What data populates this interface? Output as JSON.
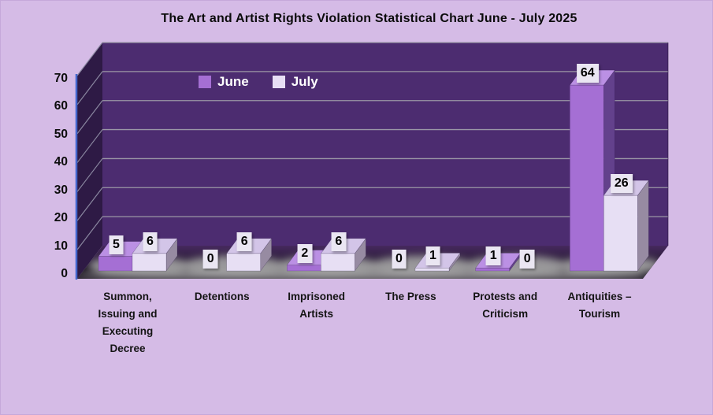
{
  "title": "The Art and Artist Rights Violation Statistical Chart June - July 2025",
  "chart_data": {
    "type": "bar",
    "projection": "3d",
    "title": "The Art and Artist Rights Violation Statistical Chart June - July 2025",
    "categories": [
      "Summon,\nIssuing and\nExecuting\nDecree",
      "Detentions",
      "Imprisoned\nArtists",
      "The Press",
      "Protests and\nCriticism",
      "Antiquities –\nTourism"
    ],
    "series": [
      {
        "name": "June",
        "values": [
          5,
          0,
          2,
          0,
          1,
          64
        ]
      },
      {
        "name": "July",
        "values": [
          6,
          6,
          6,
          1,
          0,
          26
        ]
      }
    ],
    "ylim": [
      0,
      70
    ],
    "ytick_step": 10,
    "yticks": [
      0,
      10,
      20,
      30,
      40,
      50,
      60,
      70
    ],
    "grid": true,
    "legend_position": "top-inside",
    "data_labels": true
  },
  "colors": {
    "background": "#D5BBE6",
    "back_wall": "#4C2C70",
    "side_wall": "#2E1A45",
    "floor_back": "#46295E",
    "floor_front": "#1A1420",
    "floor_glow": "#ABABAB",
    "gridline": "#9B97A6",
    "axis_line": "#4466CC",
    "june_front": "#A56FD4",
    "june_top": "#BB90E4",
    "june_side": "#63418C",
    "july_front": "#E7DFF4",
    "july_top": "#D3C5E8",
    "july_side": "#978BA2",
    "label_box": "#EAE6F2",
    "text": "#0d0d0d",
    "legend_text": "#FFFFFF"
  }
}
